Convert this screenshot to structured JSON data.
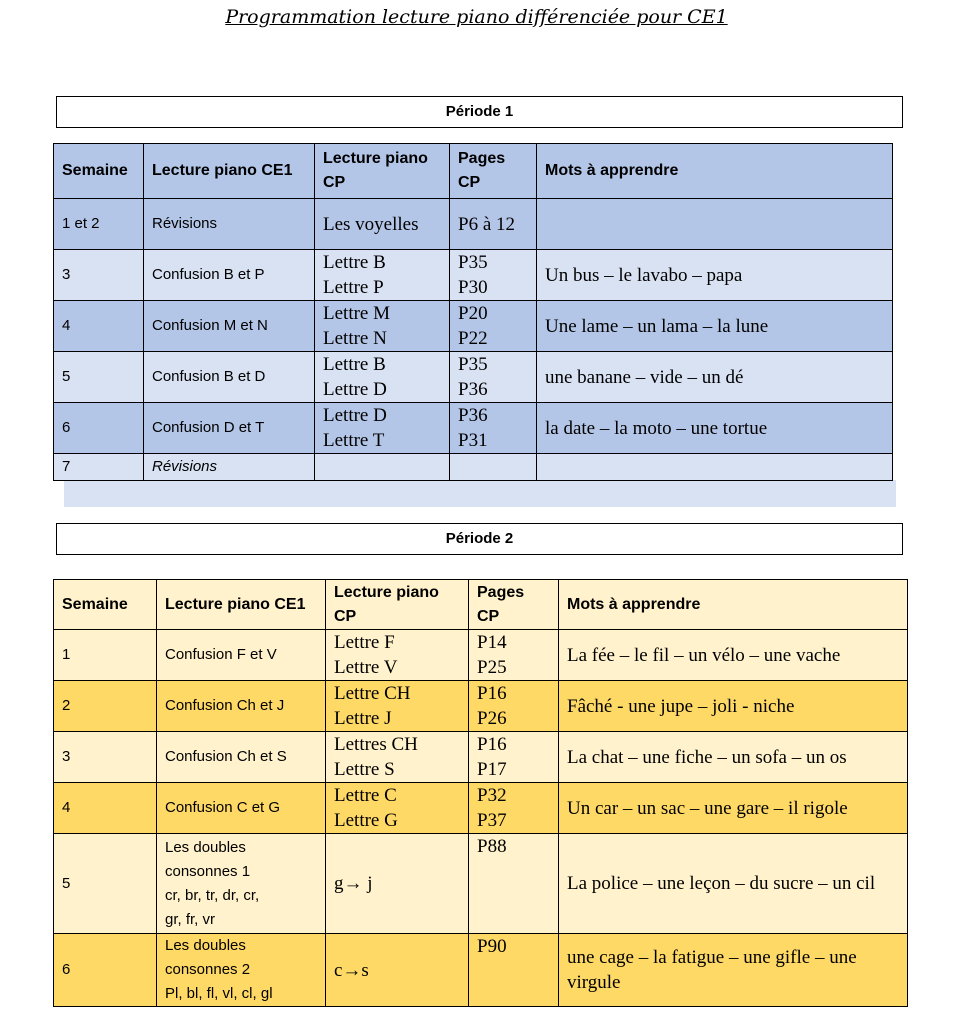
{
  "title": "Programmation lecture piano différenciée pour CE1",
  "periods": [
    {
      "title": "Période 1",
      "headers": [
        "Semaine",
        "Lecture piano CE1",
        "Lecture piano CP",
        "Pages CP",
        "Mots à apprendre"
      ],
      "rows": [
        [
          "1 et 2",
          "Révisions",
          "Les voyelles",
          "P6 à 12",
          null
        ],
        [
          "3",
          "Confusion B et P",
          [
            "Lettre B",
            "Lettre P"
          ],
          [
            "P35",
            "P30"
          ],
          "Un bus – le lavabo – papa"
        ],
        [
          "4",
          "Confusion M et N",
          [
            "Lettre M",
            "Lettre N"
          ],
          [
            "P20",
            "P22"
          ],
          "Une lame – un lama – la lune"
        ],
        [
          "5",
          "Confusion B et D",
          [
            "Lettre B",
            "Lettre D"
          ],
          [
            "P35",
            "P36"
          ],
          "une banane – vide – un dé"
        ],
        [
          "6",
          "Confusion D et T",
          [
            "Lettre D",
            "Lettre T"
          ],
          [
            "P36",
            "P31"
          ],
          "la date – la moto – une tortue"
        ],
        [
          "7",
          "Révisions",
          null,
          null,
          null
        ]
      ]
    },
    {
      "title": "Période 2",
      "headers": [
        "Semaine",
        "Lecture piano CE1",
        "Lecture piano CP",
        "Pages CP",
        "Mots à apprendre"
      ],
      "rows": [
        [
          "1",
          "Confusion F et V",
          [
            "Lettre F",
            "Lettre V"
          ],
          [
            "P14",
            "P25"
          ],
          "La fée – le fil – un vélo – une vache"
        ],
        [
          "2",
          "Confusion Ch et J",
          [
            "Lettre CH",
            "Lettre J"
          ],
          [
            "P16",
            "P26"
          ],
          "Fâché - une jupe – joli - niche"
        ],
        [
          "3",
          "Confusion Ch et S",
          [
            "Lettres CH",
            "Lettre S"
          ],
          [
            "P16",
            "P17"
          ],
          "La chat – une fiche – un sofa – un os"
        ],
        [
          "4",
          "Confusion C et G",
          [
            "Lettre C",
            "Lettre G"
          ],
          [
            "P32",
            "P37"
          ],
          "Un car – un sac – une gare – il rigole"
        ],
        [
          "5",
          [
            "Les doubles",
            "consonnes 1",
            "cr, br, tr, dr, cr,",
            "gr, fr, vr"
          ],
          "g→ j",
          "P88",
          "La police – une leçon – du sucre – un cil"
        ],
        [
          "6",
          [
            "Les doubles",
            "consonnes 2",
            "Pl, bl, fl, vl, cl, gl"
          ],
          "c→s",
          "P90",
          "une cage – la fatigue – une gifle – une virgule"
        ]
      ]
    }
  ]
}
